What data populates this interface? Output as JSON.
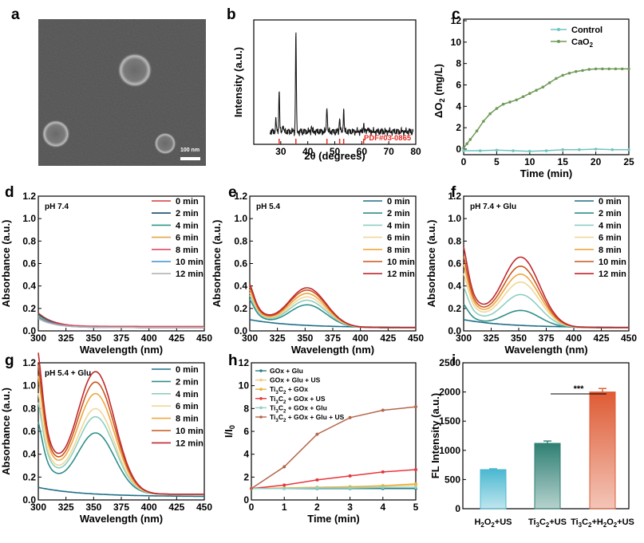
{
  "panel_letters": [
    "a",
    "b",
    "c",
    "d",
    "e",
    "f",
    "g",
    "h",
    "i"
  ],
  "sem": {
    "scale_bar_label": "100 nm"
  },
  "chart_data": [
    {
      "id": "b",
      "type": "line",
      "xlabel": "2θ (degrees)",
      "ylabel": "Intensity (a.u.)",
      "xlim": [
        20,
        80
      ],
      "xticks": [
        30,
        40,
        50,
        60,
        70,
        80
      ],
      "reference_label": "PDF#03-0865",
      "reference_color": "#e8271f",
      "reference_positions": [
        29.4,
        35.6,
        47.1,
        51.8,
        53.3,
        60.7
      ],
      "peaks": [
        {
          "x": 28.2,
          "h": 0.12
        },
        {
          "x": 29.4,
          "h": 0.42
        },
        {
          "x": 30.8,
          "h": 0.08
        },
        {
          "x": 35.6,
          "h": 1.0
        },
        {
          "x": 41.4,
          "h": 0.05
        },
        {
          "x": 47.1,
          "h": 0.27
        },
        {
          "x": 51.8,
          "h": 0.14
        },
        {
          "x": 53.3,
          "h": 0.23
        },
        {
          "x": 60.7,
          "h": 0.08
        },
        {
          "x": 62.2,
          "h": 0.05
        }
      ]
    },
    {
      "id": "c",
      "type": "line",
      "xlabel": "Time (min)",
      "ylabel": "ΔO2 (mg/L)",
      "xlim": [
        0,
        25
      ],
      "ylim": [
        0,
        12
      ],
      "xticks": [
        0,
        5,
        10,
        15,
        20,
        25
      ],
      "yticks": [
        0,
        2,
        4,
        6,
        8,
        10,
        12
      ],
      "legend": "top-right",
      "series": [
        {
          "name": "Control",
          "color": "#6fc4c2",
          "x": [
            0,
            2.5,
            5,
            7.5,
            10,
            12.5,
            15,
            17.5,
            20,
            22.5,
            25
          ],
          "y": [
            -0.15,
            -0.15,
            -0.1,
            -0.15,
            -0.2,
            -0.15,
            -0.05,
            -0.05,
            0.0,
            -0.05,
            -0.05
          ]
        },
        {
          "name": "CaO2",
          "color": "#6f9a57",
          "x": [
            0,
            0.5,
            1,
            2,
            3,
            4,
            5,
            6,
            7,
            8,
            9,
            10,
            11,
            12,
            13,
            14,
            15,
            16,
            17,
            18,
            19,
            20,
            21,
            22,
            23,
            24,
            25
          ],
          "y": [
            0.1,
            0.5,
            0.9,
            1.7,
            2.6,
            3.3,
            3.8,
            4.2,
            4.4,
            4.6,
            4.9,
            5.2,
            5.5,
            5.8,
            6.2,
            6.6,
            6.9,
            7.1,
            7.25,
            7.35,
            7.45,
            7.5,
            7.5,
            7.5,
            7.5,
            7.5,
            7.5
          ]
        }
      ]
    },
    {
      "id": "d",
      "type": "line",
      "condition": "pH 7.4",
      "xlabel": "Wavelength (nm)",
      "ylabel": "Absorbance (a.u.)",
      "xlim": [
        300,
        450
      ],
      "ylim": [
        0,
        1.2
      ],
      "xticks": [
        300,
        325,
        350,
        375,
        400,
        425,
        450
      ],
      "yticks": [
        0.0,
        0.2,
        0.4,
        0.6,
        0.8,
        1.0,
        1.2
      ],
      "legend": "top-right",
      "series": [
        {
          "name": "0 min",
          "color": "#d23a3a",
          "start": 0.16,
          "base": 0.035,
          "peak": 0,
          "decay": 14
        },
        {
          "name": "2 min",
          "color": "#1a4a6a",
          "start": 0.15,
          "base": 0.03,
          "peak": 0,
          "decay": 14
        },
        {
          "name": "4 min",
          "color": "#2e9a82",
          "start": 0.14,
          "base": 0.03,
          "peak": 0,
          "decay": 14
        },
        {
          "name": "6 min",
          "color": "#e3a54a",
          "start": 0.13,
          "base": 0.03,
          "peak": 0,
          "decay": 14
        },
        {
          "name": "8 min",
          "color": "#e04c63",
          "start": 0.12,
          "base": 0.04,
          "peak": 0,
          "decay": 14
        },
        {
          "name": "10 min",
          "color": "#3a94d0",
          "start": 0.12,
          "base": 0.03,
          "peak": 0,
          "decay": 14
        },
        {
          "name": "12 min",
          "color": "#b4b4b4",
          "start": 0.11,
          "base": 0.03,
          "peak": 0,
          "decay": 14
        }
      ]
    },
    {
      "id": "e",
      "type": "line",
      "condition": "pH 5.4",
      "xlabel": "Wavelength (nm)",
      "ylabel": "Absorbance (a.u.)",
      "xlim": [
        300,
        450
      ],
      "ylim": [
        0,
        1.2
      ],
      "xticks": [
        300,
        325,
        350,
        375,
        400,
        425,
        450
      ],
      "yticks": [
        0.0,
        0.2,
        0.4,
        0.6,
        0.8,
        1.0,
        1.2
      ],
      "legend": "top-right",
      "series": [
        {
          "name": "0 min",
          "color": "#1f6f87",
          "start": 0.1,
          "base": 0.03,
          "peak": 0.0,
          "decay": 40
        },
        {
          "name": "2 min",
          "color": "#2f8f88",
          "start": 0.25,
          "base": 0.03,
          "peak": 0.2,
          "decay": 12
        },
        {
          "name": "4 min",
          "color": "#8fcfc0",
          "start": 0.28,
          "base": 0.03,
          "peak": 0.24,
          "decay": 12
        },
        {
          "name": "6 min",
          "color": "#f0d79a",
          "start": 0.3,
          "base": 0.03,
          "peak": 0.27,
          "decay": 12
        },
        {
          "name": "8 min",
          "color": "#f0a640",
          "start": 0.32,
          "base": 0.03,
          "peak": 0.3,
          "decay": 12
        },
        {
          "name": "10 min",
          "color": "#c8561f",
          "start": 0.34,
          "base": 0.03,
          "peak": 0.33,
          "decay": 12
        },
        {
          "name": "12 min",
          "color": "#c0282e",
          "start": 0.36,
          "base": 0.03,
          "peak": 0.35,
          "decay": 12
        }
      ]
    },
    {
      "id": "f",
      "type": "line",
      "condition": "pH 7.4 + Glu",
      "xlabel": "Wavelength (nm)",
      "ylabel": "Absorbance (a.u.)",
      "xlim": [
        300,
        450
      ],
      "ylim": [
        0,
        1.2
      ],
      "xticks": [
        300,
        325,
        350,
        375,
        400,
        425,
        450
      ],
      "yticks": [
        0.0,
        0.2,
        0.4,
        0.6,
        0.8,
        1.0,
        1.2
      ],
      "legend": "top-right",
      "series": [
        {
          "name": "0 min",
          "color": "#1f6f87",
          "start": 0.1,
          "base": 0.03,
          "peak": 0.0,
          "decay": 40
        },
        {
          "name": "2 min",
          "color": "#2f8f88",
          "start": 0.22,
          "base": 0.03,
          "peak": 0.15,
          "decay": 12
        },
        {
          "name": "4 min",
          "color": "#8fcfc0",
          "start": 0.35,
          "base": 0.03,
          "peak": 0.29,
          "decay": 12
        },
        {
          "name": "6 min",
          "color": "#f0d79a",
          "start": 0.45,
          "base": 0.03,
          "peak": 0.4,
          "decay": 12
        },
        {
          "name": "8 min",
          "color": "#f0a640",
          "start": 0.52,
          "base": 0.03,
          "peak": 0.47,
          "decay": 12
        },
        {
          "name": "10 min",
          "color": "#c8561f",
          "start": 0.58,
          "base": 0.03,
          "peak": 0.54,
          "decay": 12
        },
        {
          "name": "12 min",
          "color": "#c0282e",
          "start": 0.65,
          "base": 0.03,
          "peak": 0.62,
          "decay": 12
        }
      ]
    },
    {
      "id": "g",
      "type": "line",
      "condition": "pH 5.4 + Glu",
      "xlabel": "Wavelength (nm)",
      "ylabel": "Absorbance (a.u.)",
      "xlim": [
        300,
        450
      ],
      "ylim": [
        0,
        1.2
      ],
      "xticks": [
        300,
        325,
        350,
        375,
        400,
        425,
        450
      ],
      "yticks": [
        0.0,
        0.2,
        0.4,
        0.6,
        0.8,
        1.0,
        1.2
      ],
      "legend": "top-right",
      "series": [
        {
          "name": "0 min",
          "color": "#1f6f87",
          "start": 0.11,
          "base": 0.03,
          "peak": 0.0,
          "decay": 40
        },
        {
          "name": "2 min",
          "color": "#2f8f88",
          "start": 0.6,
          "base": 0.05,
          "peak": 0.53,
          "decay": 12
        },
        {
          "name": "4 min",
          "color": "#8fcfc0",
          "start": 0.75,
          "base": 0.05,
          "peak": 0.67,
          "decay": 12
        },
        {
          "name": "6 min",
          "color": "#f0d79a",
          "start": 0.82,
          "base": 0.05,
          "peak": 0.74,
          "decay": 12
        },
        {
          "name": "8 min",
          "color": "#f0a640",
          "start": 0.95,
          "base": 0.05,
          "peak": 0.87,
          "decay": 12
        },
        {
          "name": "10 min",
          "color": "#c8561f",
          "start": 1.03,
          "base": 0.05,
          "peak": 0.97,
          "decay": 12
        },
        {
          "name": "12 min",
          "color": "#c0282e",
          "start": 1.12,
          "base": 0.05,
          "peak": 1.06,
          "decay": 12
        }
      ]
    },
    {
      "id": "h",
      "type": "line",
      "xlabel": "Time (min)",
      "ylabel": "I/I0",
      "xlim": [
        0,
        5
      ],
      "ylim": [
        0,
        12
      ],
      "xticks": [
        0,
        1,
        2,
        3,
        4,
        5
      ],
      "yticks": [
        0,
        2,
        4,
        6,
        8,
        10,
        12
      ],
      "legend": "top-left",
      "series": [
        {
          "name": "GOx + Glu",
          "color": "#2a7f86",
          "x": [
            0,
            1,
            2,
            3,
            4,
            5
          ],
          "y": [
            1.0,
            1.0,
            1.0,
            1.0,
            1.0,
            1.0
          ]
        },
        {
          "name": "GOx + Glu + US",
          "color": "#f3c98a",
          "x": [
            0,
            1,
            2,
            3,
            4,
            5
          ],
          "y": [
            1.0,
            1.05,
            1.1,
            1.15,
            1.2,
            1.3
          ]
        },
        {
          "name": "Ti3C2 + GOx",
          "color": "#e8b23a",
          "x": [
            0,
            1,
            2,
            3,
            4,
            5
          ],
          "y": [
            1.0,
            1.05,
            1.1,
            1.15,
            1.25,
            1.4
          ]
        },
        {
          "name": "Ti3C2 + GOx + US",
          "color": "#e8353a",
          "x": [
            0,
            1,
            2,
            3,
            4,
            5
          ],
          "y": [
            1.0,
            1.3,
            1.75,
            2.1,
            2.45,
            2.65
          ]
        },
        {
          "name": "Ti3C2 + GOx + Glu",
          "color": "#8fd0c4",
          "x": [
            0,
            1,
            2,
            3,
            4,
            5
          ],
          "y": [
            1.0,
            1.0,
            1.05,
            1.05,
            1.1,
            1.1
          ]
        },
        {
          "name": "Ti3C2 + GOx + Glu + US",
          "color": "#b5664a",
          "x": [
            0,
            1,
            2,
            3,
            4,
            5
          ],
          "y": [
            1.0,
            2.9,
            5.75,
            7.2,
            7.85,
            8.15
          ]
        }
      ]
    },
    {
      "id": "i",
      "type": "bar",
      "ylabel": "FL Intensity (a.u.)",
      "ylim": [
        0,
        2500
      ],
      "yticks": [
        0,
        500,
        1000,
        1500,
        2000,
        2500
      ],
      "categories": [
        "H2O2+US",
        "Ti3C2+US",
        "Ti3C2+H2O2+US"
      ],
      "values": [
        670,
        1120,
        2000
      ],
      "errors": [
        15,
        40,
        60
      ],
      "colors": [
        "#4bb8d0",
        "#2f7f73",
        "#de5b34"
      ],
      "significance": "***"
    }
  ]
}
